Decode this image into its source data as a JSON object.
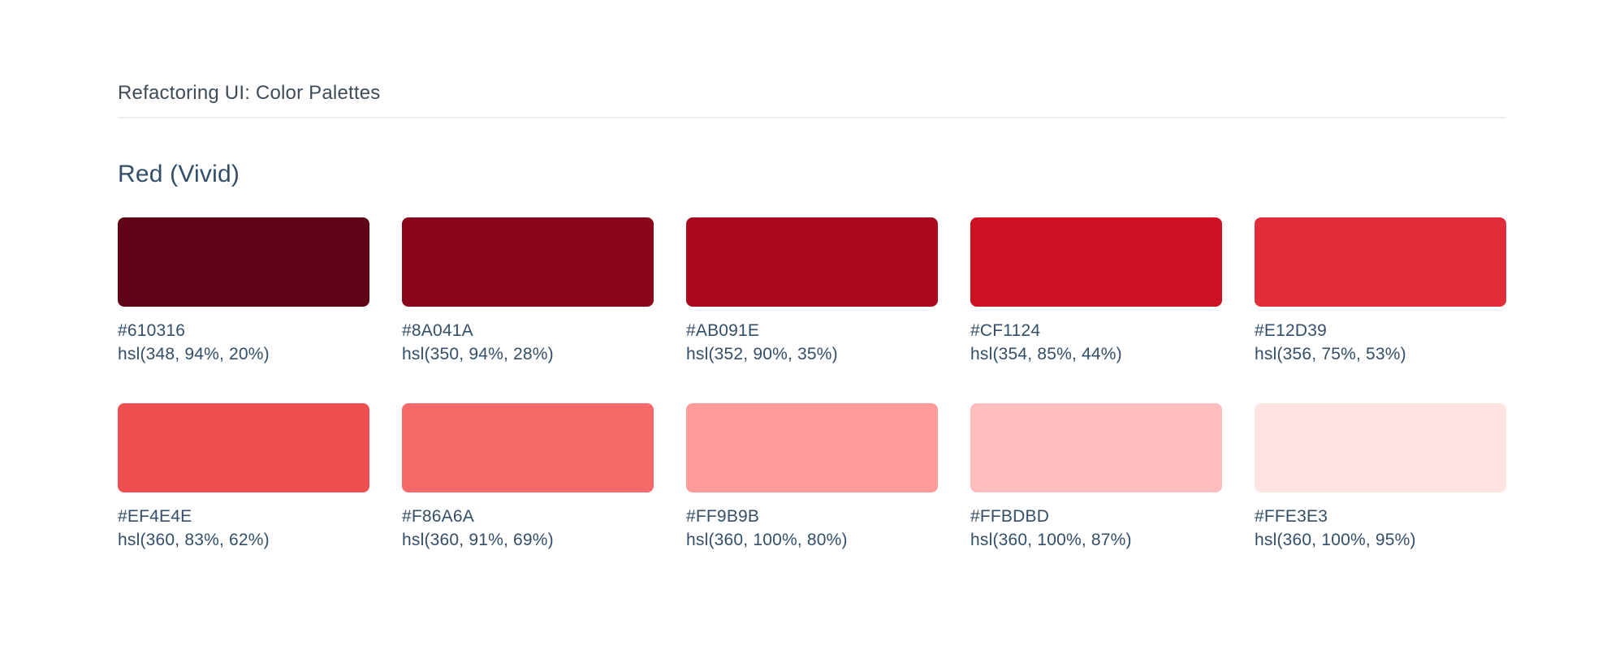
{
  "page": {
    "title": "Refactoring UI: Color Palettes",
    "background": "#FFFFFF",
    "title_color": "#3E4C59",
    "divider_color": "#E9EDF1"
  },
  "palette": {
    "name": "Red (Vivid)",
    "heading_color": "#334E68",
    "label_color": "#334E68",
    "swatches": [
      {
        "hex": "#610316",
        "hsl": "hsl(348, 94%, 20%)"
      },
      {
        "hex": "#8A041A",
        "hsl": "hsl(350, 94%, 28%)"
      },
      {
        "hex": "#AB091E",
        "hsl": "hsl(352, 90%, 35%)"
      },
      {
        "hex": "#CF1124",
        "hsl": "hsl(354, 85%, 44%)"
      },
      {
        "hex": "#E12D39",
        "hsl": "hsl(356, 75%, 53%)"
      },
      {
        "hex": "#EF4E4E",
        "hsl": "hsl(360, 83%, 62%)"
      },
      {
        "hex": "#F86A6A",
        "hsl": "hsl(360, 91%, 69%)"
      },
      {
        "hex": "#FF9B9B",
        "hsl": "hsl(360, 100%, 80%)"
      },
      {
        "hex": "#FFBDBD",
        "hsl": "hsl(360, 100%, 87%)"
      },
      {
        "hex": "#FFE3E3",
        "hsl": "hsl(360, 100%, 95%)"
      }
    ]
  }
}
